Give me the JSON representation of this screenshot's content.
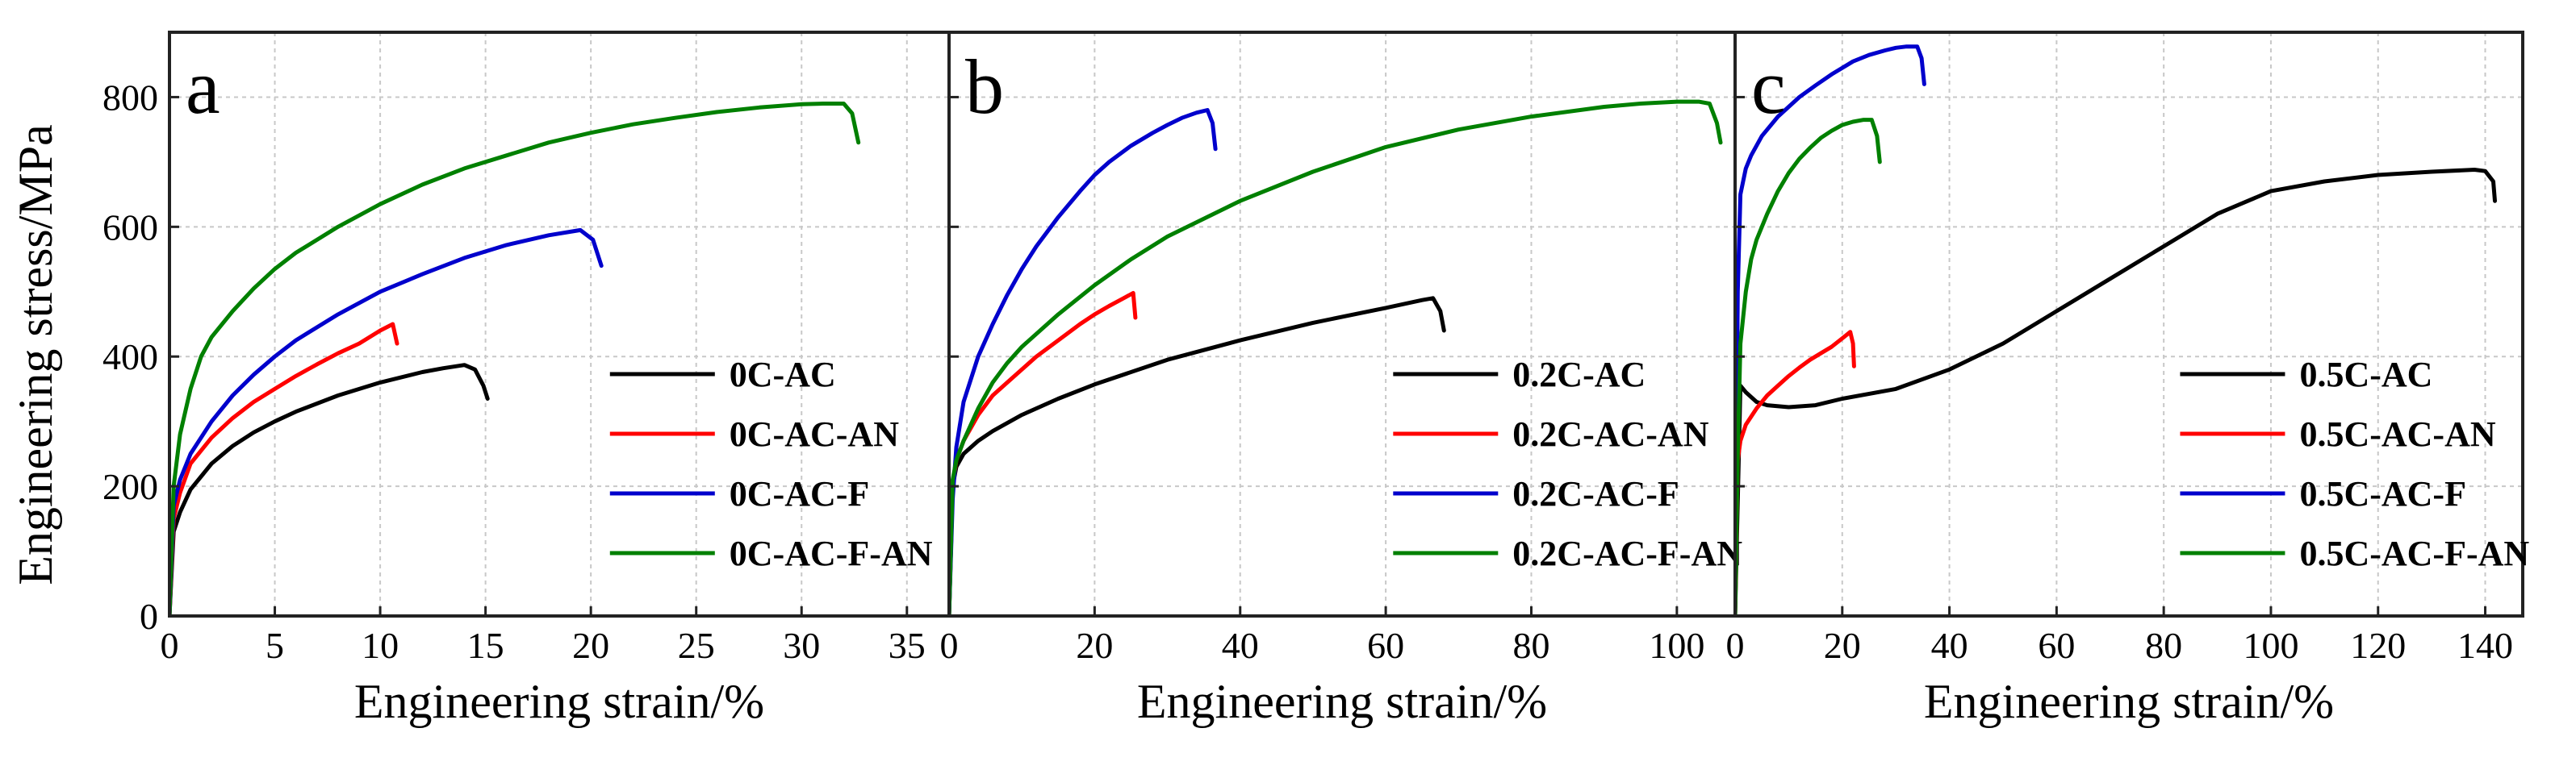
{
  "figure": {
    "ylabel": "Engineering stress/MPa"
  },
  "chart_data": [
    {
      "type": "line",
      "panel_label": "a",
      "xlabel": "Engineering strain/%",
      "ylabel": "Engineering stress/MPa",
      "xlim": [
        0,
        37
      ],
      "ylim": [
        0,
        900
      ],
      "xticks": [
        0,
        5,
        10,
        15,
        20,
        25,
        30,
        35
      ],
      "yticks": [
        0,
        200,
        400,
        600,
        800
      ],
      "grid": true,
      "legend": "bottom-right",
      "series": [
        {
          "name": "0C-AC",
          "color": "#000000",
          "x": [
            0,
            0.2,
            0.5,
            1,
            2,
            3,
            4,
            5,
            6,
            8,
            10,
            12,
            13,
            14,
            14.5,
            14.9,
            15.1
          ],
          "y": [
            0,
            130,
            160,
            195,
            235,
            262,
            283,
            300,
            315,
            340,
            360,
            376,
            382,
            387,
            380,
            355,
            335
          ]
        },
        {
          "name": "0C-AC-AN",
          "color": "#ff0000",
          "x": [
            0,
            0.2,
            0.5,
            1,
            2,
            3,
            4,
            5,
            6,
            7,
            8,
            9,
            10,
            10.6,
            10.8
          ],
          "y": [
            0,
            150,
            190,
            235,
            275,
            305,
            330,
            350,
            370,
            388,
            405,
            420,
            440,
            450,
            420
          ]
        },
        {
          "name": "0C-AC-F",
          "color": "#0000cc",
          "x": [
            0,
            0.2,
            0.5,
            1,
            2,
            3,
            4,
            5,
            6,
            8,
            10,
            12,
            14,
            16,
            18,
            19.5,
            20.1,
            20.5
          ],
          "y": [
            0,
            170,
            210,
            250,
            300,
            340,
            372,
            400,
            425,
            465,
            500,
            527,
            552,
            572,
            587,
            595,
            580,
            540
          ]
        },
        {
          "name": "0C-AC-F-AN",
          "color": "#008000",
          "x": [
            0,
            0.2,
            0.5,
            1,
            1.5,
            2,
            3,
            4,
            5,
            6,
            8,
            10,
            12,
            14,
            16,
            18,
            20,
            22,
            24,
            26,
            28,
            30,
            31,
            32,
            32.4,
            32.7
          ],
          "y": [
            0,
            200,
            280,
            350,
            400,
            430,
            470,
            505,
            535,
            560,
            600,
            635,
            665,
            690,
            710,
            730,
            745,
            758,
            768,
            777,
            784,
            789,
            790,
            790,
            775,
            730
          ]
        }
      ]
    },
    {
      "type": "line",
      "panel_label": "b",
      "xlabel": "Engineering strain/%",
      "ylabel": "Engineering stress/MPa",
      "xlim": [
        0,
        108
      ],
      "ylim": [
        0,
        900
      ],
      "xticks": [
        0,
        20,
        40,
        60,
        80,
        100
      ],
      "yticks": [
        0,
        200,
        400,
        600,
        800
      ],
      "grid": true,
      "legend": "bottom-right",
      "series": [
        {
          "name": "0.2C-AC",
          "color": "#000000",
          "x": [
            0,
            0.5,
            1,
            2,
            4,
            6,
            10,
            15,
            20,
            30,
            40,
            50,
            60,
            65,
            66.5,
            67.5,
            68
          ],
          "y": [
            0,
            200,
            230,
            250,
            270,
            285,
            310,
            335,
            357,
            395,
            425,
            452,
            475,
            487,
            490,
            470,
            440
          ]
        },
        {
          "name": "0.2C-AC-AN",
          "color": "#ff0000",
          "x": [
            0,
            0.5,
            1,
            2,
            4,
            6,
            8,
            10,
            12,
            15,
            18,
            20,
            22,
            24,
            25.3,
            25.6
          ],
          "y": [
            0,
            200,
            240,
            270,
            310,
            340,
            360,
            380,
            400,
            425,
            450,
            465,
            478,
            490,
            498,
            460
          ]
        },
        {
          "name": "0.2C-AC-F",
          "color": "#0000cc",
          "x": [
            0,
            0.5,
            1,
            2,
            4,
            6,
            8,
            10,
            12,
            15,
            18,
            20,
            22,
            25,
            28,
            30,
            32,
            34,
            35.5,
            36.2,
            36.6
          ],
          "y": [
            0,
            180,
            260,
            330,
            400,
            450,
            495,
            535,
            570,
            615,
            655,
            680,
            700,
            725,
            745,
            757,
            768,
            776,
            780,
            760,
            720
          ]
        },
        {
          "name": "0.2C-AC-F-AN",
          "color": "#008000",
          "x": [
            0,
            0.5,
            1,
            2,
            4,
            6,
            8,
            10,
            15,
            20,
            25,
            30,
            40,
            50,
            60,
            70,
            80,
            90,
            95,
            100,
            103,
            104.5,
            105.5,
            106
          ],
          "y": [
            0,
            210,
            240,
            270,
            320,
            360,
            390,
            415,
            465,
            510,
            550,
            585,
            640,
            685,
            723,
            750,
            770,
            785,
            790,
            793,
            793,
            790,
            760,
            730
          ]
        }
      ]
    },
    {
      "type": "line",
      "panel_label": "c",
      "xlabel": "Engineering strain/%",
      "ylabel": "Engineering stress/MPa",
      "xlim": [
        0,
        147
      ],
      "ylim": [
        0,
        900
      ],
      "xticks": [
        0,
        20,
        40,
        60,
        80,
        100,
        120,
        140
      ],
      "yticks": [
        0,
        200,
        400,
        600,
        800
      ],
      "grid": true,
      "legend": "bottom-right",
      "series": [
        {
          "name": "0.5C-AC",
          "color": "#000000",
          "x": [
            0,
            1,
            2,
            4,
            6,
            10,
            15,
            20,
            30,
            40,
            50,
            60,
            70,
            80,
            90,
            100,
            110,
            120,
            130,
            138,
            140,
            141.5,
            141.8
          ],
          "y": [
            0,
            355,
            345,
            330,
            325,
            322,
            325,
            335,
            350,
            380,
            420,
            470,
            520,
            570,
            620,
            655,
            670,
            680,
            685,
            688,
            686,
            670,
            640
          ]
        },
        {
          "name": "0.5C-AC-AN",
          "color": "#ff0000",
          "x": [
            0,
            0.5,
            1,
            2,
            4,
            6,
            8,
            10,
            12,
            14,
            16,
            18,
            20,
            21.5,
            22,
            22.2
          ],
          "y": [
            0,
            240,
            270,
            295,
            320,
            340,
            355,
            370,
            383,
            395,
            405,
            415,
            428,
            438,
            420,
            385
          ]
        },
        {
          "name": "0.5C-AC-F",
          "color": "#0000cc",
          "x": [
            0,
            0.5,
            1,
            2,
            3,
            5,
            8,
            10,
            12,
            15,
            18,
            20,
            22,
            25,
            28,
            30,
            32,
            34,
            34.8,
            35.3
          ],
          "y": [
            0,
            500,
            650,
            690,
            710,
            740,
            770,
            785,
            800,
            818,
            835,
            845,
            855,
            865,
            872,
            876,
            878,
            878,
            860,
            820
          ]
        },
        {
          "name": "0.5C-AC-F-AN",
          "color": "#008000",
          "x": [
            0,
            0.5,
            1,
            2,
            3,
            4,
            6,
            8,
            10,
            12,
            14,
            16,
            18,
            20,
            22,
            24,
            25.5,
            26.5,
            27
          ],
          "y": [
            0,
            250,
            420,
            500,
            550,
            580,
            620,
            655,
            683,
            705,
            722,
            737,
            748,
            757,
            762,
            765,
            765,
            740,
            700
          ]
        }
      ]
    }
  ]
}
